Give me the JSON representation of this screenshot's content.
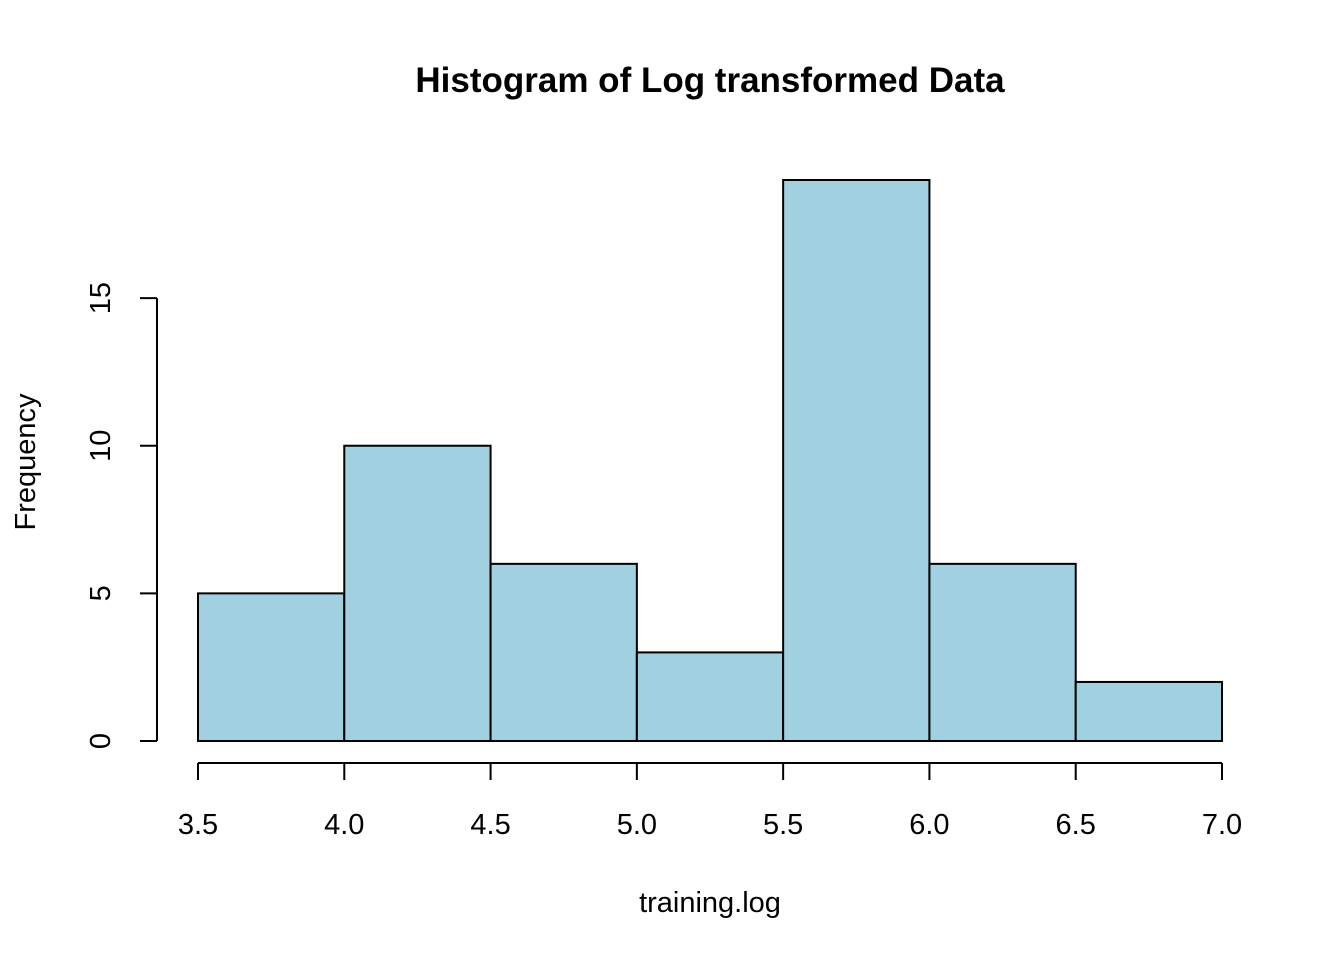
{
  "chart_data": {
    "type": "bar",
    "subtype": "histogram",
    "title": "Histogram of Log transformed Data",
    "xlabel": "training.log",
    "ylabel": "Frequency",
    "bins": [
      {
        "start": 3.5,
        "end": 4.0,
        "count": 5
      },
      {
        "start": 4.0,
        "end": 4.5,
        "count": 10
      },
      {
        "start": 4.5,
        "end": 5.0,
        "count": 6
      },
      {
        "start": 5.0,
        "end": 5.5,
        "count": 3
      },
      {
        "start": 5.5,
        "end": 6.0,
        "count": 19
      },
      {
        "start": 6.0,
        "end": 6.5,
        "count": 6
      },
      {
        "start": 6.5,
        "end": 7.0,
        "count": 2
      }
    ],
    "xlim": [
      3.5,
      7.0
    ],
    "ylim": [
      0,
      19
    ],
    "x_ticks": [
      "3.5",
      "4.0",
      "4.5",
      "5.0",
      "5.5",
      "6.0",
      "6.5",
      "7.0"
    ],
    "y_ticks": [
      "0",
      "5",
      "10",
      "15"
    ],
    "bar_color": "#a1d0e0",
    "edge_color": "#000000",
    "grid": false,
    "legend": "none"
  }
}
